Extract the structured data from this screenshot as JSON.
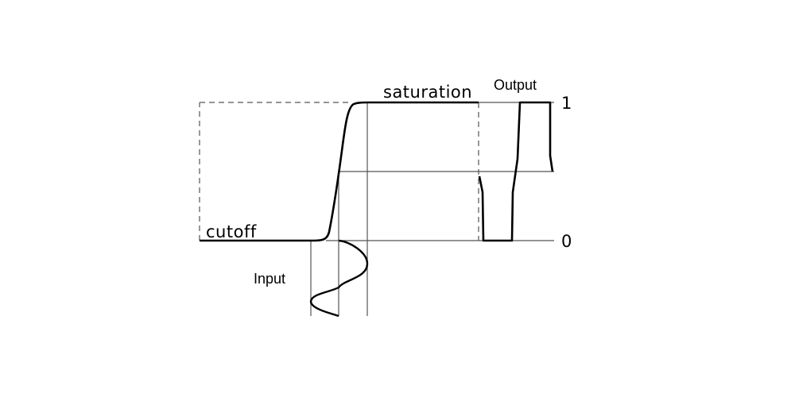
{
  "labels": {
    "saturation": "saturation",
    "cutoff": "cutoff",
    "input": "Input",
    "output": "Output",
    "level_high": "1",
    "level_low": "0"
  },
  "colors": {
    "ink": "#000000",
    "guide": "#555555",
    "background": "#ffffff"
  }
}
